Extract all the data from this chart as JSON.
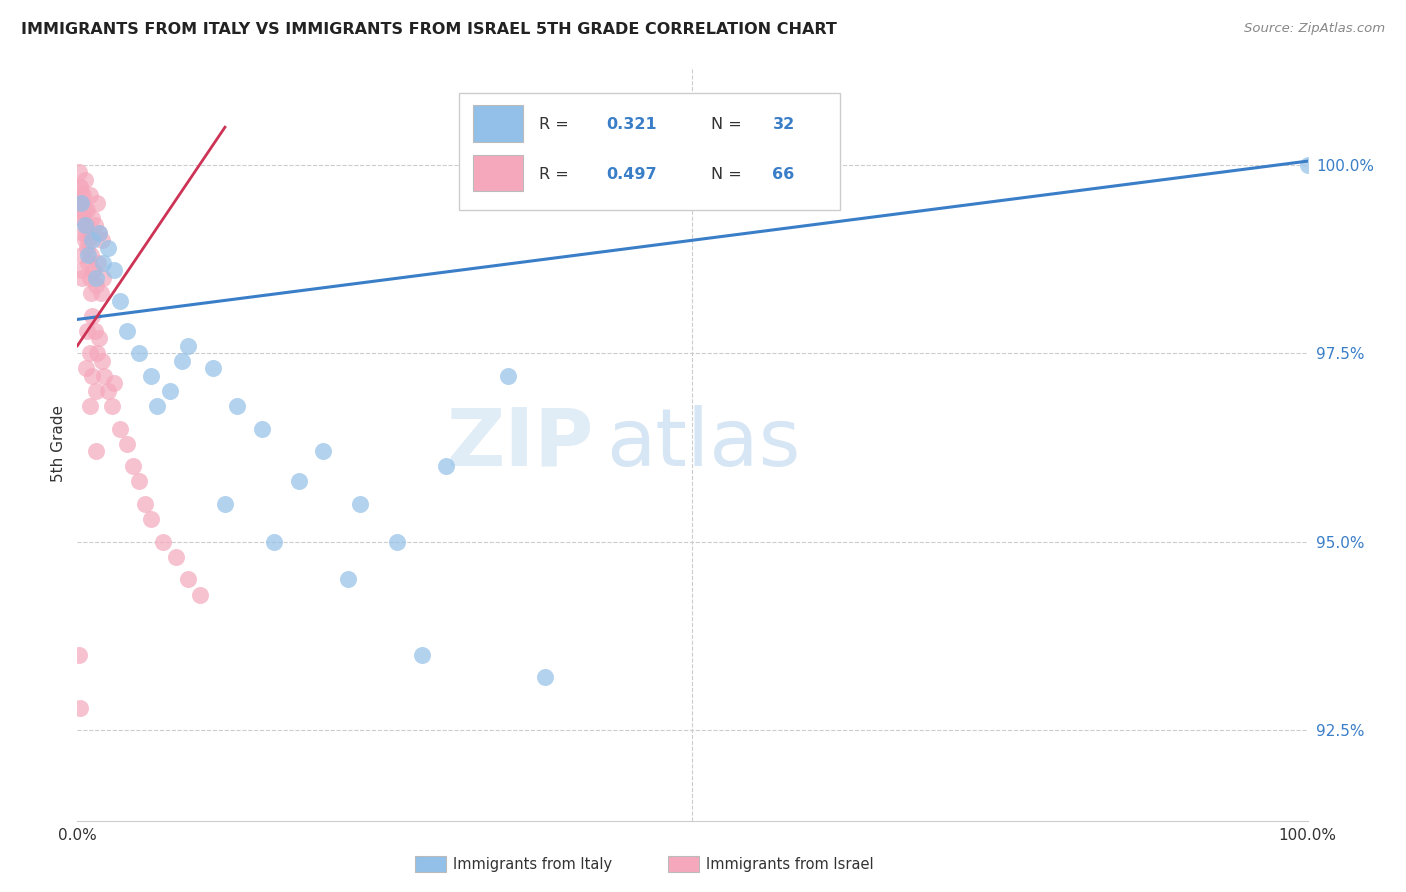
{
  "title": "IMMIGRANTS FROM ITALY VS IMMIGRANTS FROM ISRAEL 5TH GRADE CORRELATION CHART",
  "source": "Source: ZipAtlas.com",
  "ylabel": "5th Grade",
  "yticks": [
    92.5,
    95.0,
    97.5,
    100.0
  ],
  "ytick_labels": [
    "92.5%",
    "95.0%",
    "97.5%",
    "100.0%"
  ],
  "xlim": [
    0.0,
    1.0
  ],
  "ylim": [
    91.3,
    101.3
  ],
  "italy_color": "#92c0e8",
  "israel_color": "#f5a8bc",
  "italy_trend_color": "#3a7ec8",
  "israel_trend_color": "#cc3355",
  "watermark_zip": "ZIP",
  "watermark_atlas": "atlas",
  "legend_R_italy": "0.321",
  "legend_N_italy": "32",
  "legend_R_israel": "0.497",
  "legend_N_israel": "66",
  "italy_trend_x": [
    0.0,
    1.0
  ],
  "italy_trend_y": [
    97.95,
    100.05
  ],
  "israel_trend_x": [
    0.0,
    0.12
  ],
  "israel_trend_y": [
    97.6,
    100.5
  ],
  "italy_x": [
    0.003,
    0.006,
    0.009,
    0.012,
    0.015,
    0.018,
    0.021,
    0.025,
    0.03,
    0.035,
    0.04,
    0.05,
    0.06,
    0.075,
    0.09,
    0.11,
    0.13,
    0.15,
    0.18,
    0.2,
    0.23,
    0.26,
    0.3,
    0.35,
    0.065,
    0.085,
    0.12,
    0.16,
    0.22,
    0.28,
    0.38,
    1.0
  ],
  "italy_y": [
    99.5,
    99.2,
    98.8,
    99.0,
    98.5,
    99.1,
    98.7,
    98.9,
    98.6,
    98.2,
    97.8,
    97.5,
    97.2,
    97.0,
    97.6,
    97.3,
    96.8,
    96.5,
    95.8,
    96.2,
    95.5,
    95.0,
    96.0,
    97.2,
    96.8,
    97.4,
    95.5,
    95.0,
    94.5,
    93.5,
    93.2,
    100.0
  ],
  "israel_x": [
    0.002,
    0.004,
    0.006,
    0.008,
    0.01,
    0.012,
    0.014,
    0.016,
    0.018,
    0.02,
    0.003,
    0.005,
    0.007,
    0.009,
    0.011,
    0.013,
    0.015,
    0.017,
    0.019,
    0.021,
    0.001,
    0.002,
    0.003,
    0.004,
    0.005,
    0.006,
    0.007,
    0.008,
    0.009,
    0.01,
    0.011,
    0.012,
    0.014,
    0.016,
    0.018,
    0.02,
    0.022,
    0.025,
    0.028,
    0.03,
    0.035,
    0.04,
    0.045,
    0.05,
    0.055,
    0.06,
    0.07,
    0.08,
    0.09,
    0.1,
    0.001,
    0.003,
    0.005,
    0.008,
    0.012,
    0.002,
    0.004,
    0.006,
    0.01,
    0.015,
    0.001,
    0.002,
    0.004,
    0.007,
    0.01,
    0.015
  ],
  "israel_y": [
    99.7,
    99.5,
    99.8,
    99.4,
    99.6,
    99.3,
    99.2,
    99.5,
    99.1,
    99.0,
    99.6,
    99.4,
    99.2,
    99.0,
    98.8,
    98.6,
    98.4,
    98.7,
    98.3,
    98.5,
    99.9,
    99.7,
    99.5,
    99.3,
    99.6,
    99.4,
    99.1,
    98.9,
    98.7,
    98.5,
    98.3,
    98.0,
    97.8,
    97.5,
    97.7,
    97.4,
    97.2,
    97.0,
    96.8,
    97.1,
    96.5,
    96.3,
    96.0,
    95.8,
    95.5,
    95.3,
    95.0,
    94.8,
    94.5,
    94.3,
    99.4,
    98.6,
    99.1,
    97.8,
    97.2,
    99.3,
    98.8,
    99.0,
    97.5,
    97.0,
    93.5,
    92.8,
    98.5,
    97.3,
    96.8,
    96.2
  ],
  "bottom_legend_italy_label": "Immigrants from Italy",
  "bottom_legend_israel_label": "Immigrants from Israel"
}
